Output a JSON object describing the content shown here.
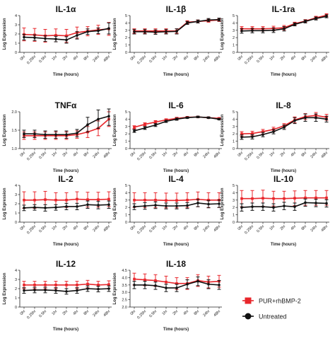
{
  "chart_data": [
    {
      "type": "line",
      "title": "IL-1α",
      "xlabel": "Time (hours)",
      "ylabel": "Log Expression",
      "categories": [
        "0hr",
        "0.25hr",
        "0.5hr",
        "1hr",
        "2hr",
        "4hr",
        "8hr",
        "24hr",
        "48hr"
      ],
      "ylim": [
        0,
        4
      ],
      "yticks": [
        0,
        1,
        2,
        3,
        4
      ],
      "series": [
        {
          "name": "PUR+rhBMP-2",
          "values": [
            1.95,
            1.9,
            1.8,
            1.85,
            1.8,
            2.15,
            2.3,
            2.45,
            2.55
          ],
          "errors": [
            0.7,
            0.7,
            0.7,
            0.7,
            0.7,
            0.6,
            0.5,
            0.5,
            0.7
          ]
        },
        {
          "name": "Untreated",
          "values": [
            1.65,
            1.6,
            1.5,
            1.45,
            1.35,
            1.85,
            2.25,
            2.35,
            2.6
          ],
          "errors": [
            0.3,
            0.3,
            0.3,
            0.3,
            0.35,
            0.4,
            0.3,
            0.3,
            0.6
          ]
        }
      ]
    },
    {
      "type": "line",
      "title": "IL-1β",
      "xlabel": "Time (hours)",
      "ylabel": "Log Expression",
      "categories": [
        "0hr",
        "0.25hr",
        "0.5hr",
        "1hr",
        "2hr",
        "4hr",
        "8hr",
        "24hr",
        "48hr"
      ],
      "ylim": [
        0,
        5
      ],
      "yticks": [
        0,
        1,
        2,
        3,
        4,
        5
      ],
      "series": [
        {
          "name": "PUR+rhBMP-2",
          "values": [
            2.9,
            2.9,
            2.9,
            2.9,
            2.9,
            4.1,
            4.2,
            4.3,
            4.4
          ],
          "errors": [
            0.3,
            0.3,
            0.3,
            0.3,
            0.3,
            0.2,
            0.2,
            0.2,
            0.2
          ]
        },
        {
          "name": "Untreated",
          "values": [
            2.8,
            2.8,
            2.75,
            2.8,
            2.85,
            4.0,
            4.2,
            4.4,
            4.45
          ],
          "errors": [
            0.3,
            0.3,
            0.3,
            0.3,
            0.35,
            0.2,
            0.2,
            0.2,
            0.2
          ]
        }
      ]
    },
    {
      "type": "line",
      "title": "IL-1ra",
      "xlabel": "Time (hours)",
      "ylabel": "Log Expression",
      "categories": [
        "0hr",
        "0.25hr",
        "0.5hr",
        "1hr",
        "2hr",
        "4hr",
        "8hr",
        "24hr",
        "48hr"
      ],
      "ylim": [
        0,
        5
      ],
      "yticks": [
        0,
        1,
        2,
        3,
        4,
        5
      ],
      "series": [
        {
          "name": "PUR+rhBMP-2",
          "values": [
            3.2,
            3.2,
            3.2,
            3.25,
            3.35,
            3.9,
            4.25,
            4.7,
            5.05
          ],
          "errors": [
            0.3,
            0.3,
            0.3,
            0.3,
            0.3,
            0.2,
            0.2,
            0.2,
            0.2
          ]
        },
        {
          "name": "Untreated",
          "values": [
            2.9,
            2.95,
            2.95,
            3.0,
            3.2,
            3.8,
            4.2,
            4.6,
            4.9
          ],
          "errors": [
            0.3,
            0.3,
            0.3,
            0.3,
            0.3,
            0.2,
            0.2,
            0.2,
            0.2
          ]
        }
      ]
    },
    {
      "type": "line",
      "title": "TNFα",
      "xlabel": "Time (hours)",
      "ylabel": "Log Expression",
      "categories": [
        "0hr",
        "0.25hr",
        "0.5hr",
        "1hr",
        "2hr",
        "4hr",
        "8hr",
        "24hr",
        "48hr"
      ],
      "ylim": [
        1.0,
        2.0
      ],
      "yticks": [
        1.0,
        1.5,
        2.0
      ],
      "series": [
        {
          "name": "PUR+rhBMP-2",
          "values": [
            1.35,
            1.35,
            1.35,
            1.35,
            1.35,
            1.38,
            1.45,
            1.55,
            1.8
          ],
          "errors": [
            0.1,
            0.1,
            0.1,
            0.1,
            0.1,
            0.1,
            0.15,
            0.2,
            0.2
          ]
        },
        {
          "name": "Untreated",
          "values": [
            1.4,
            1.4,
            1.38,
            1.38,
            1.38,
            1.42,
            1.65,
            1.8,
            1.88
          ],
          "errors": [
            0.1,
            0.1,
            0.1,
            0.1,
            0.1,
            0.1,
            0.2,
            0.25,
            0.25
          ]
        }
      ]
    },
    {
      "type": "line",
      "title": "IL-6",
      "xlabel": "Time (hours)",
      "ylabel": "Log Expression",
      "categories": [
        "0hr",
        "0.25hr",
        "0.5hr",
        "1hr",
        "2hr",
        "4hr",
        "8hr",
        "24hr",
        "48hr"
      ],
      "ylim": [
        0,
        5
      ],
      "yticks": [
        0,
        1,
        2,
        3,
        4,
        5
      ],
      "series": [
        {
          "name": "PUR+rhBMP-2",
          "values": [
            2.9,
            3.3,
            3.6,
            3.9,
            4.1,
            4.25,
            4.3,
            4.2,
            4.1
          ],
          "errors": [
            0.2,
            0.2,
            0.2,
            0.15,
            0.15,
            0.1,
            0.1,
            0.1,
            0.1
          ]
        },
        {
          "name": "Untreated",
          "values": [
            2.4,
            2.8,
            3.2,
            3.7,
            4.0,
            4.2,
            4.3,
            4.2,
            4.0
          ],
          "errors": [
            0.2,
            0.2,
            0.2,
            0.15,
            0.15,
            0.1,
            0.1,
            0.1,
            0.1
          ]
        }
      ]
    },
    {
      "type": "line",
      "title": "IL-8",
      "xlabel": "Time (hours)",
      "ylabel": "Log Expression",
      "categories": [
        "0hr",
        "0.25hr",
        "0.5hr",
        "1hr",
        "2hr",
        "4hr",
        "8hr",
        "24hr",
        "48hr"
      ],
      "ylim": [
        0,
        5
      ],
      "yticks": [
        0,
        1,
        2,
        3,
        4,
        5
      ],
      "series": [
        {
          "name": "PUR+rhBMP-2",
          "values": [
            2.0,
            2.05,
            2.3,
            2.6,
            3.1,
            3.9,
            4.35,
            4.5,
            4.25
          ],
          "errors": [
            0.3,
            0.3,
            0.3,
            0.3,
            0.3,
            0.4,
            0.4,
            0.4,
            0.4
          ]
        },
        {
          "name": "Untreated",
          "values": [
            1.55,
            1.6,
            1.9,
            2.3,
            2.9,
            3.8,
            4.2,
            4.2,
            4.0
          ],
          "errors": [
            0.3,
            0.3,
            0.3,
            0.3,
            0.3,
            0.4,
            0.5,
            0.5,
            0.4
          ]
        }
      ]
    },
    {
      "type": "line",
      "title": "IL-2",
      "xlabel": "Time (hours)",
      "ylabel": "Log Expression",
      "categories": [
        "0hr",
        "0.25hr",
        "0.5hr",
        "1hr",
        "2hr",
        "4hr",
        "8hr",
        "24hr",
        "48hr"
      ],
      "ylim": [
        0,
        4
      ],
      "yticks": [
        0,
        1,
        2,
        3,
        4
      ],
      "series": [
        {
          "name": "PUR+rhBMP-2",
          "values": [
            2.4,
            2.4,
            2.45,
            2.4,
            2.4,
            2.5,
            2.45,
            2.45,
            2.5
          ],
          "errors": [
            0.9,
            0.9,
            0.9,
            0.8,
            0.8,
            0.8,
            0.8,
            0.8,
            0.8
          ]
        },
        {
          "name": "Untreated",
          "values": [
            1.55,
            1.6,
            1.55,
            1.6,
            1.7,
            1.7,
            1.9,
            1.85,
            1.9
          ],
          "errors": [
            0.3,
            0.3,
            0.35,
            0.3,
            0.35,
            0.35,
            0.4,
            0.4,
            0.4
          ]
        }
      ]
    },
    {
      "type": "line",
      "title": "IL-4",
      "xlabel": "Time (hours)",
      "ylabel": "Log Expression",
      "categories": [
        "0hr",
        "0.25hr",
        "0.5hr",
        "1hr",
        "2hr",
        "4hr",
        "8hr",
        "24hr",
        "48hr"
      ],
      "ylim": [
        0,
        5
      ],
      "yticks": [
        0,
        1,
        2,
        3,
        4,
        5
      ],
      "series": [
        {
          "name": "PUR+rhBMP-2",
          "values": [
            3.0,
            3.0,
            3.0,
            2.95,
            2.95,
            3.0,
            3.1,
            3.0,
            3.0
          ],
          "errors": [
            1.0,
            1.0,
            1.0,
            1.0,
            1.0,
            1.0,
            1.0,
            1.0,
            1.0
          ]
        },
        {
          "name": "Untreated",
          "values": [
            2.1,
            2.2,
            2.3,
            2.2,
            2.2,
            2.25,
            2.6,
            2.45,
            2.5
          ],
          "errors": [
            0.4,
            0.45,
            0.45,
            0.4,
            0.4,
            0.4,
            0.5,
            0.5,
            0.5
          ]
        }
      ]
    },
    {
      "type": "line",
      "title": "IL-10",
      "xlabel": "Time (hours)",
      "ylabel": "Log Expression",
      "categories": [
        "0hr",
        "0.25hr",
        "0.5hr",
        "1hr",
        "2hr",
        "4hr",
        "8hr",
        "24hr",
        "48hr"
      ],
      "ylim": [
        0,
        5
      ],
      "yticks": [
        0,
        1,
        2,
        3,
        4,
        5
      ],
      "series": [
        {
          "name": "PUR+rhBMP-2",
          "values": [
            3.2,
            3.2,
            3.25,
            3.2,
            3.2,
            3.25,
            3.3,
            3.3,
            3.3
          ],
          "errors": [
            1.1,
            1.1,
            1.1,
            1.0,
            1.0,
            1.0,
            1.0,
            1.0,
            1.0
          ]
        },
        {
          "name": "Untreated",
          "values": [
            2.0,
            2.1,
            2.1,
            2.0,
            2.2,
            2.1,
            2.65,
            2.6,
            2.55
          ],
          "errors": [
            0.5,
            0.5,
            0.5,
            0.5,
            0.5,
            0.5,
            0.5,
            0.5,
            0.5
          ]
        }
      ]
    },
    {
      "type": "line",
      "title": "IL-12",
      "xlabel": "Time (hours)",
      "ylabel": "Log Expression",
      "categories": [
        "0hr",
        "0.25hr",
        "0.5hr",
        "1hr",
        "2hr",
        "4hr",
        "8hr",
        "24hr",
        "48hr"
      ],
      "ylim": [
        0,
        4
      ],
      "yticks": [
        0,
        1,
        2,
        3,
        4
      ],
      "series": [
        {
          "name": "PUR+rhBMP-2",
          "values": [
            2.4,
            2.4,
            2.4,
            2.4,
            2.4,
            2.4,
            2.5,
            2.4,
            2.45
          ],
          "errors": [
            0.4,
            0.4,
            0.4,
            0.4,
            0.4,
            0.4,
            0.4,
            0.4,
            0.4
          ]
        },
        {
          "name": "Untreated",
          "values": [
            1.8,
            1.85,
            1.85,
            1.8,
            1.7,
            1.8,
            2.0,
            1.95,
            2.0
          ],
          "errors": [
            0.3,
            0.3,
            0.3,
            0.3,
            0.3,
            0.3,
            0.3,
            0.3,
            0.3
          ]
        }
      ]
    },
    {
      "type": "line",
      "title": "IL-18",
      "xlabel": "Time (hours)",
      "ylabel": "Log Expression",
      "categories": [
        "0hr",
        "0.25hr",
        "0.5hr",
        "1hr",
        "2hr",
        "4hr",
        "8hr",
        "24hr",
        "48hr"
      ],
      "ylim": [
        2.0,
        4.5
      ],
      "yticks": [
        2.0,
        2.5,
        3.0,
        3.5,
        4.0,
        4.5
      ],
      "series": [
        {
          "name": "PUR+rhBMP-2",
          "values": [
            3.9,
            3.85,
            3.8,
            3.7,
            3.6,
            3.6,
            3.8,
            3.7,
            3.75
          ],
          "errors": [
            0.4,
            0.4,
            0.4,
            0.4,
            0.4,
            0.4,
            0.4,
            0.4,
            0.4
          ]
        },
        {
          "name": "Untreated",
          "values": [
            3.5,
            3.5,
            3.45,
            3.3,
            3.3,
            3.55,
            3.75,
            3.55,
            3.5
          ],
          "errors": [
            0.25,
            0.25,
            0.25,
            0.25,
            0.25,
            0.3,
            0.3,
            0.3,
            0.3
          ]
        }
      ]
    }
  ],
  "legend": {
    "placement": "right",
    "items": [
      {
        "label": "PUR+rhBMP-2",
        "color": "#e8262b",
        "marker": "square"
      },
      {
        "label": "Untreated",
        "color": "#111111",
        "marker": "circle"
      }
    ]
  },
  "colors": {
    "PUR+rhBMP-2": "#e8262b",
    "Untreated": "#111111"
  }
}
